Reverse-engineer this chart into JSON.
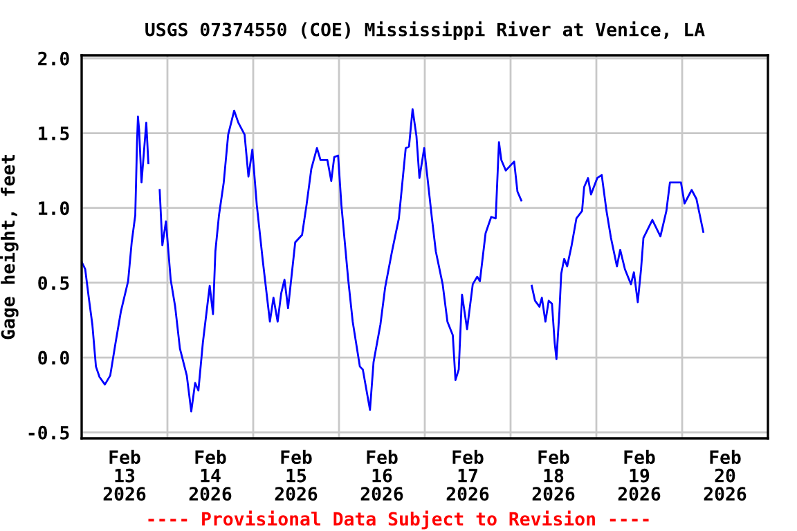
{
  "chart_data": {
    "type": "line",
    "title": "USGS 07374550 (COE) Mississippi River at Venice, LA",
    "ylabel": "Gage height, feet",
    "annotations": [
      "---- Provisional Data Subject to Revision ----"
    ],
    "x": [
      "2026-02-13T00:00",
      "2026-02-13T01:00",
      "2026-02-13T02:00",
      "2026-02-13T03:00",
      "2026-02-13T04:00",
      "2026-02-13T05:00",
      "2026-02-13T06:30",
      "2026-02-13T08:00",
      "2026-02-13T09:30",
      "2026-02-13T11:00",
      "2026-02-13T13:00",
      "2026-02-13T14:00",
      "2026-02-13T15:00",
      "2026-02-13T15:30",
      "2026-02-13T15:45",
      "2026-02-13T16:05",
      "2026-02-13T16:45",
      "2026-02-13T17:25",
      "2026-02-13T18:05",
      "2026-02-13T18:40",
      "2026-02-13T20:00",
      "2026-02-13T21:50",
      "2026-02-13T22:35",
      "2026-02-13T23:35",
      "2026-02-14T00:55",
      "2026-02-14T02:10",
      "2026-02-14T03:30",
      "2026-02-14T05:25",
      "2026-02-14T06:40",
      "2026-02-14T07:45",
      "2026-02-14T08:40",
      "2026-02-14T09:55",
      "2026-02-14T11:50",
      "2026-02-14T12:45",
      "2026-02-14T13:25",
      "2026-02-14T14:25",
      "2026-02-14T15:45",
      "2026-02-14T17:00",
      "2026-02-14T18:40",
      "2026-02-14T19:50",
      "2026-02-14T21:35",
      "2026-02-14T22:40",
      "2026-02-14T23:45",
      "2026-02-15T01:00",
      "2026-02-15T02:40",
      "2026-02-15T04:40",
      "2026-02-15T05:40",
      "2026-02-15T06:50",
      "2026-02-15T07:50",
      "2026-02-15T08:45",
      "2026-02-15T09:45",
      "2026-02-15T11:45",
      "2026-02-15T13:40",
      "2026-02-15T14:55",
      "2026-02-15T16:15",
      "2026-02-15T17:50",
      "2026-02-15T18:50",
      "2026-02-15T20:45",
      "2026-02-15T21:50",
      "2026-02-15T22:40",
      "2026-02-15T23:45",
      "2026-02-16T00:40",
      "2026-02-16T02:35",
      "2026-02-16T03:50",
      "2026-02-16T05:50",
      "2026-02-16T06:40",
      "2026-02-16T08:40",
      "2026-02-16T09:40",
      "2026-02-16T11:35",
      "2026-02-16T12:55",
      "2026-02-16T14:50",
      "2026-02-16T16:45",
      "2026-02-16T18:40",
      "2026-02-16T19:35",
      "2026-02-16T20:35",
      "2026-02-16T21:40",
      "2026-02-16T22:30",
      "2026-02-16T23:50",
      "2026-02-17T02:00",
      "2026-02-17T03:05",
      "2026-02-17T05:00",
      "2026-02-17T06:20",
      "2026-02-17T07:50",
      "2026-02-17T08:35",
      "2026-02-17T09:30",
      "2026-02-17T10:25",
      "2026-02-17T11:50",
      "2026-02-17T13:25",
      "2026-02-17T14:40",
      "2026-02-17T15:25",
      "2026-02-17T17:00",
      "2026-02-17T18:35",
      "2026-02-17T19:50",
      "2026-02-17T20:45",
      "2026-02-17T21:25",
      "2026-02-17T22:40",
      "2026-02-18T01:00",
      "2026-02-18T01:55",
      "2026-02-18T03:00",
      "2026-02-18T05:00",
      "2026-02-18T05:55",
      "2026-02-18T06:50",
      "2026-02-18T08:05",
      "2026-02-18T08:45",
      "2026-02-18T09:45",
      "2026-02-18T10:40",
      "2026-02-18T11:35",
      "2026-02-18T12:20",
      "2026-02-18T12:50",
      "2026-02-18T13:40",
      "2026-02-18T14:10",
      "2026-02-18T15:00",
      "2026-02-18T15:50",
      "2026-02-18T17:05",
      "2026-02-18T18:25",
      "2026-02-18T20:00",
      "2026-02-18T20:35",
      "2026-02-18T21:40",
      "2026-02-18T22:30",
      "2026-02-19T00:15",
      "2026-02-19T01:30",
      "2026-02-19T02:50",
      "2026-02-19T04:05",
      "2026-02-19T05:45",
      "2026-02-19T06:40",
      "2026-02-19T08:00",
      "2026-02-19T09:40",
      "2026-02-19T10:30",
      "2026-02-19T11:35",
      "2026-02-19T12:30",
      "2026-02-19T13:10",
      "2026-02-19T15:40",
      "2026-02-19T17:55",
      "2026-02-19T19:35",
      "2026-02-19T20:35",
      "2026-02-19T22:05",
      "2026-02-19T23:40",
      "2026-02-20T00:40",
      "2026-02-20T02:40",
      "2026-02-20T04:00",
      "2026-02-20T05:55"
    ],
    "series": [
      {
        "color": "#0000ff",
        "values": [
          0.64,
          0.59,
          0.4,
          0.22,
          -0.06,
          -0.13,
          -0.18,
          -0.12,
          0.1,
          0.31,
          0.51,
          0.77,
          0.95,
          1.44,
          1.61,
          1.52,
          1.17,
          1.37,
          1.57,
          1.3,
          null,
          1.12,
          0.75,
          0.91,
          0.52,
          0.34,
          0.06,
          -0.12,
          -0.36,
          -0.17,
          -0.22,
          0.1,
          0.48,
          0.29,
          0.71,
          0.95,
          1.17,
          1.49,
          1.65,
          1.57,
          1.49,
          1.21,
          1.39,
          1.02,
          0.65,
          0.24,
          0.4,
          0.24,
          0.43,
          0.52,
          0.33,
          0.77,
          0.82,
          1.02,
          1.26,
          1.4,
          1.32,
          1.32,
          1.18,
          1.34,
          1.35,
          1.02,
          0.52,
          0.24,
          -0.06,
          -0.08,
          -0.35,
          -0.03,
          0.22,
          0.47,
          0.71,
          0.93,
          1.4,
          1.41,
          1.66,
          1.48,
          1.2,
          1.4,
          0.93,
          0.71,
          0.49,
          0.24,
          0.15,
          -0.15,
          -0.08,
          0.42,
          0.19,
          0.49,
          0.54,
          0.51,
          0.83,
          0.94,
          0.93,
          1.44,
          1.32,
          1.25,
          1.31,
          1.11,
          1.05,
          null,
          0.48,
          0.38,
          0.34,
          0.4,
          0.24,
          0.38,
          0.36,
          0.1,
          -0.01,
          0.31,
          0.56,
          0.66,
          0.61,
          0.75,
          0.93,
          0.98,
          1.14,
          1.2,
          1.09,
          1.2,
          1.22,
          0.98,
          0.8,
          0.61,
          0.72,
          0.59,
          0.49,
          0.57,
          0.37,
          0.59,
          0.8,
          0.92,
          0.81,
          0.98,
          1.17,
          1.17,
          1.17,
          1.03,
          1.12,
          1.06,
          0.84
        ]
      }
    ],
    "xlim": [
      "2026-02-13T00:00",
      "2026-02-21T00:00"
    ],
    "xticks": [
      {
        "value": "2026-02-13T00:00",
        "label": null
      },
      {
        "value": "2026-02-13T12:00",
        "label": "Feb\n13\n2026"
      },
      {
        "value": "2026-02-14T00:00",
        "label": null
      },
      {
        "value": "2026-02-14T12:00",
        "label": "Feb\n14\n2026"
      },
      {
        "value": "2026-02-15T00:00",
        "label": null
      },
      {
        "value": "2026-02-15T12:00",
        "label": "Feb\n15\n2026"
      },
      {
        "value": "2026-02-16T00:00",
        "label": null
      },
      {
        "value": "2026-02-16T12:00",
        "label": "Feb\n16\n2026"
      },
      {
        "value": "2026-02-17T00:00",
        "label": null
      },
      {
        "value": "2026-02-17T12:00",
        "label": "Feb\n17\n2026"
      },
      {
        "value": "2026-02-18T00:00",
        "label": null
      },
      {
        "value": "2026-02-18T12:00",
        "label": "Feb\n18\n2026"
      },
      {
        "value": "2026-02-19T00:00",
        "label": null
      },
      {
        "value": "2026-02-19T12:00",
        "label": "Feb\n19\n2026"
      },
      {
        "value": "2026-02-20T00:00",
        "label": null
      },
      {
        "value": "2026-02-20T12:00",
        "label": "Feb\n20\n2026"
      }
    ],
    "ylim": [
      -0.54,
      2.02
    ],
    "yticks": [
      {
        "value": -0.5,
        "label": "-0.5"
      },
      {
        "value": 0.0,
        "label": "0.0"
      },
      {
        "value": 0.5,
        "label": "0.5"
      },
      {
        "value": 1.0,
        "label": "1.0"
      },
      {
        "value": 1.5,
        "label": "1.5"
      },
      {
        "value": 2.0,
        "label": "2.0"
      }
    ],
    "grid": true,
    "line_style": "solid",
    "marker": "none"
  }
}
